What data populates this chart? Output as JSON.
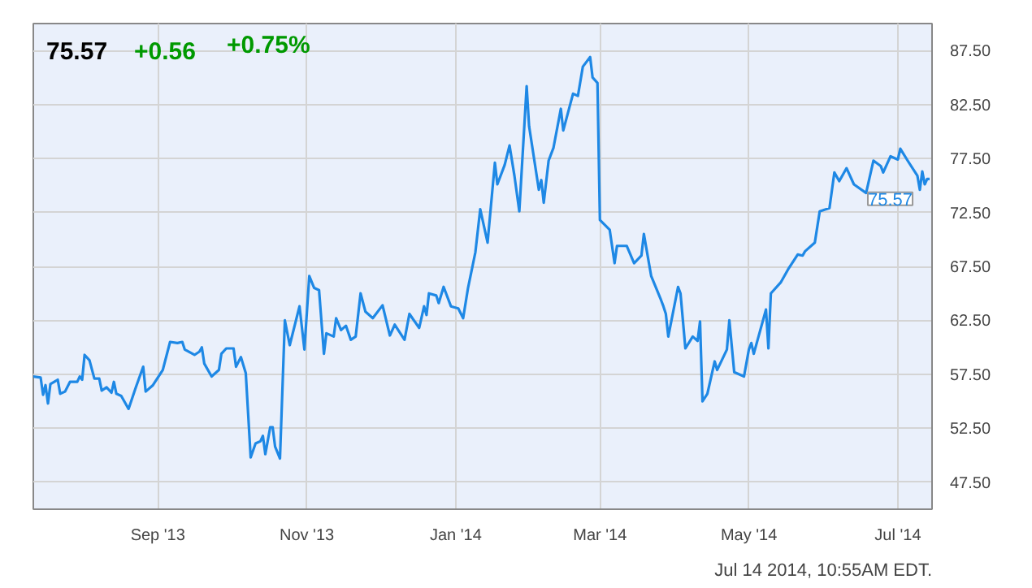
{
  "chart_data": {
    "type": "line",
    "title": "75.57",
    "annotations": [
      "+0.56",
      "+0.75%",
      {
        "text": "75.57",
        "x": "2014-07-14",
        "y": 75.57
      },
      "Jul 14 2014, 10:55AM EDT."
    ],
    "x": [
      "2013-07-12",
      "2013-07-15",
      "2013-07-16",
      "2013-07-17",
      "2013-07-18",
      "2013-07-19",
      "2013-07-22",
      "2013-07-23",
      "2013-07-25",
      "2013-07-27",
      "2013-07-30",
      "2013-07-31",
      "2013-08-01",
      "2013-08-02",
      "2013-08-04",
      "2013-08-06",
      "2013-08-08",
      "2013-08-09",
      "2013-08-11",
      "2013-08-13",
      "2013-08-14",
      "2013-08-15",
      "2013-08-17",
      "2013-08-20",
      "2013-08-23",
      "2013-08-26",
      "2013-08-27",
      "2013-08-30",
      "2013-09-03",
      "2013-09-06",
      "2013-09-09",
      "2013-09-11",
      "2013-09-12",
      "2013-09-16",
      "2013-09-18",
      "2013-09-19",
      "2013-09-20",
      "2013-09-23",
      "2013-09-26",
      "2013-09-27",
      "2013-09-29",
      "2013-10-02",
      "2013-10-03",
      "2013-10-05",
      "2013-10-07",
      "2013-10-09",
      "2013-10-11",
      "2013-10-13",
      "2013-10-14",
      "2013-10-15",
      "2013-10-17",
      "2013-10-18",
      "2013-10-19",
      "2013-10-21",
      "2013-10-23",
      "2013-10-25",
      "2013-10-29",
      "2013-10-31",
      "2013-11-02",
      "2013-11-04",
      "2013-11-06",
      "2013-11-08",
      "2013-11-09",
      "2013-11-12",
      "2013-11-13",
      "2013-11-15",
      "2013-11-17",
      "2013-11-19",
      "2013-11-21",
      "2013-11-23",
      "2013-11-25",
      "2013-11-28",
      "2013-12-02",
      "2013-12-05",
      "2013-12-07",
      "2013-12-11",
      "2013-12-13",
      "2013-12-17",
      "2013-12-19",
      "2013-12-20",
      "2013-12-21",
      "2013-12-24",
      "2013-12-25",
      "2013-12-27",
      "2013-12-30",
      "2014-01-02",
      "2014-01-04",
      "2014-01-06",
      "2014-01-09",
      "2014-01-11",
      "2014-01-14",
      "2014-01-17",
      "2014-01-18",
      "2014-01-21",
      "2014-01-23",
      "2014-01-25",
      "2014-01-27",
      "2014-01-30",
      "2014-01-31",
      "2014-02-04",
      "2014-02-05",
      "2014-02-06",
      "2014-02-08",
      "2014-02-10",
      "2014-02-13",
      "2014-02-14",
      "2014-02-18",
      "2014-02-20",
      "2014-02-22",
      "2014-02-25",
      "2014-02-26",
      "2014-02-28",
      "2014-03-01",
      "2014-03-05",
      "2014-03-07",
      "2014-03-08",
      "2014-03-12",
      "2014-03-15",
      "2014-03-18",
      "2014-03-19",
      "2014-03-22",
      "2014-03-26",
      "2014-03-27",
      "2014-03-28",
      "2014-03-29",
      "2014-04-02",
      "2014-04-03",
      "2014-04-05",
      "2014-04-08",
      "2014-04-10",
      "2014-04-11",
      "2014-04-12",
      "2014-04-14",
      "2014-04-17",
      "2014-04-18",
      "2014-04-22",
      "2014-04-23",
      "2014-04-25",
      "2014-04-29",
      "2014-05-01",
      "2014-05-02",
      "2014-05-03",
      "2014-05-08",
      "2014-05-09",
      "2014-05-10",
      "2014-05-14",
      "2014-05-17",
      "2014-05-21",
      "2014-05-23",
      "2014-05-24",
      "2014-05-28",
      "2014-05-30",
      "2014-06-03",
      "2014-06-05",
      "2014-06-07",
      "2014-06-10",
      "2014-06-13",
      "2014-06-18",
      "2014-06-21",
      "2014-06-24",
      "2014-06-25",
      "2014-06-28",
      "2014-07-01",
      "2014-07-02",
      "2014-07-05",
      "2014-07-09",
      "2014-07-10",
      "2014-07-11",
      "2014-07-12",
      "2014-07-13",
      "2014-07-14"
    ],
    "series": [
      {
        "color": "#1e88e5",
        "values": [
          57.3,
          57.2,
          55.6,
          56.5,
          54.8,
          56.6,
          57.0,
          55.7,
          55.9,
          56.8,
          56.8,
          57.3,
          57.0,
          59.3,
          58.8,
          57.1,
          57.1,
          56.0,
          56.3,
          55.8,
          56.8,
          55.7,
          55.5,
          54.3,
          56.3,
          58.2,
          55.9,
          56.5,
          57.9,
          60.5,
          60.4,
          60.5,
          59.8,
          59.3,
          59.6,
          60.0,
          58.5,
          57.3,
          57.9,
          59.4,
          59.9,
          59.9,
          58.2,
          59.1,
          57.6,
          49.8,
          51.1,
          51.3,
          51.8,
          50.1,
          52.6,
          52.6,
          50.8,
          49.7,
          62.5,
          60.2,
          63.8,
          59.8,
          66.6,
          65.5,
          65.3,
          59.4,
          61.3,
          61.0,
          62.7,
          61.6,
          62.0,
          60.7,
          61.0,
          65.0,
          63.3,
          62.7,
          63.9,
          61.1,
          62.1,
          60.7,
          63.1,
          61.8,
          63.8,
          63.0,
          65.0,
          64.8,
          64.1,
          65.6,
          63.8,
          63.6,
          62.7,
          65.5,
          68.8,
          72.8,
          69.7,
          77.1,
          75.1,
          76.9,
          78.7,
          75.9,
          72.6,
          84.2,
          80.5,
          74.6,
          75.5,
          73.4,
          77.3,
          78.5,
          82.1,
          80.1,
          83.5,
          83.3,
          86.0,
          86.9,
          85.0,
          84.5,
          71.8,
          70.9,
          67.8,
          69.4,
          69.4,
          67.8,
          68.5,
          70.5,
          66.6,
          64.4,
          63.8,
          63.1,
          61.0,
          65.6,
          65.0,
          59.9,
          61.0,
          60.6,
          62.4,
          55.0,
          55.7,
          58.7,
          57.9,
          59.8,
          62.5,
          57.7,
          57.3,
          59.8,
          60.4,
          59.4,
          63.5,
          59.9,
          65.0,
          66.0,
          67.2,
          68.6,
          68.5,
          68.9,
          69.7,
          72.6,
          72.9,
          76.2,
          75.4,
          76.6,
          75.1,
          74.3,
          77.3,
          76.8,
          76.2,
          77.7,
          77.4,
          78.4,
          77.3,
          75.9,
          74.6,
          76.3,
          75.1,
          75.6,
          75.6
        ]
      }
    ],
    "xlim": [
      "2013-07-12",
      "2014-07-15"
    ],
    "xticks": [
      {
        "value": "2013-09-01",
        "label": "Sep '13"
      },
      {
        "value": "2013-11-01",
        "label": "Nov '13"
      },
      {
        "value": "2014-01-01",
        "label": "Jan '14"
      },
      {
        "value": "2014-03-01",
        "label": "Mar '14"
      },
      {
        "value": "2014-05-01",
        "label": "May '14"
      },
      {
        "value": "2014-07-01",
        "label": "Jul '14"
      }
    ],
    "ylim": [
      45,
      90
    ],
    "yticks": [
      {
        "value": 47.5,
        "label": "47.50"
      },
      {
        "value": 52.5,
        "label": "52.50"
      },
      {
        "value": 57.5,
        "label": "57.50"
      },
      {
        "value": 62.5,
        "label": "62.50"
      },
      {
        "value": 67.5,
        "label": "67.50"
      },
      {
        "value": 72.5,
        "label": "72.50"
      },
      {
        "value": 77.5,
        "label": "77.50"
      },
      {
        "value": 82.5,
        "label": "82.50"
      },
      {
        "value": 87.5,
        "label": "87.50"
      }
    ],
    "grid": true,
    "marker": "none",
    "line_style": "solid"
  }
}
